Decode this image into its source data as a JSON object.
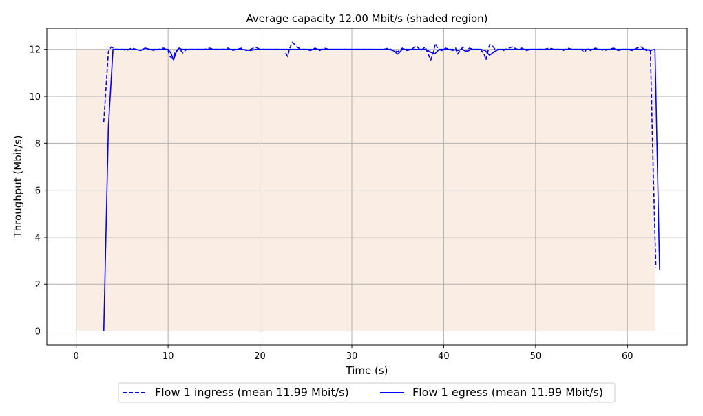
{
  "chart_data": {
    "type": "line",
    "title": "Average capacity 12.00 Mbit/s (shaded region)",
    "xlabel": "Time (s)",
    "ylabel": "Throughput (Mbit/s)",
    "xlim": [
      -3.2,
      66.5
    ],
    "ylim": [
      -0.6,
      12.9
    ],
    "xticks": [
      0,
      10,
      20,
      30,
      40,
      50,
      60
    ],
    "yticks": [
      0,
      2,
      4,
      6,
      8,
      10,
      12
    ],
    "grid": true,
    "legend_position": "bottom-center",
    "shaded_capacity": {
      "x": [
        0,
        63
      ],
      "y": 12.0,
      "color": "#faeee4"
    },
    "series": [
      {
        "name": "Flow 1 ingress (mean 11.99 Mbit/s)",
        "style": "dashed",
        "color": "#0000ff",
        "points": [
          [
            3.0,
            8.9
          ],
          [
            3.5,
            11.9
          ],
          [
            3.8,
            12.1
          ],
          [
            4.3,
            12.0
          ],
          [
            5.0,
            12.0
          ],
          [
            5.5,
            11.95
          ],
          [
            6.0,
            12.05
          ],
          [
            6.5,
            12.0
          ],
          [
            7.0,
            11.95
          ],
          [
            7.5,
            12.05
          ],
          [
            8.0,
            12.0
          ],
          [
            8.5,
            11.95
          ],
          [
            9.0,
            12.0
          ],
          [
            9.5,
            12.05
          ],
          [
            10.0,
            11.95
          ],
          [
            10.2,
            11.7
          ],
          [
            10.5,
            11.6
          ],
          [
            10.8,
            11.9
          ],
          [
            11.2,
            12.05
          ],
          [
            11.6,
            11.85
          ],
          [
            12.0,
            12.0
          ],
          [
            13.0,
            12.0
          ],
          [
            14.0,
            12.0
          ],
          [
            14.5,
            12.05
          ],
          [
            15.0,
            12.0
          ],
          [
            16.0,
            12.0
          ],
          [
            16.5,
            12.05
          ],
          [
            17.0,
            11.95
          ],
          [
            17.5,
            12.0
          ],
          [
            18.0,
            12.05
          ],
          [
            18.5,
            11.95
          ],
          [
            19.0,
            12.0
          ],
          [
            19.5,
            12.1
          ],
          [
            20.0,
            12.0
          ],
          [
            21.0,
            12.0
          ],
          [
            22.0,
            12.0
          ],
          [
            null,
            null
          ],
          [
            22.8,
            11.85
          ],
          [
            23.0,
            11.7
          ],
          [
            23.2,
            12.0
          ],
          [
            23.5,
            12.3
          ],
          [
            23.8,
            12.2
          ],
          [
            24.0,
            12.1
          ],
          [
            24.5,
            12.0
          ],
          [
            25.0,
            12.0
          ],
          [
            25.5,
            11.95
          ],
          [
            26.0,
            12.05
          ],
          [
            26.5,
            11.95
          ],
          [
            27.0,
            12.05
          ],
          [
            27.5,
            12.0
          ],
          [
            28.0,
            12.0
          ],
          [
            29.0,
            12.0
          ],
          [
            30.0,
            12.0
          ],
          [
            31.0,
            12.0
          ],
          [
            32.0,
            12.0
          ],
          [
            null,
            null
          ],
          [
            33.5,
            12.0
          ],
          [
            34.0,
            12.05
          ],
          [
            34.5,
            11.95
          ],
          [
            35.0,
            11.9
          ],
          [
            35.5,
            12.05
          ],
          [
            36.0,
            11.95
          ],
          [
            36.5,
            12.0
          ],
          [
            37.0,
            12.15
          ],
          [
            37.5,
            11.95
          ],
          [
            38.0,
            12.1
          ],
          [
            38.3,
            11.8
          ],
          [
            38.6,
            11.55
          ],
          [
            38.9,
            11.9
          ],
          [
            39.1,
            12.25
          ],
          [
            39.4,
            12.0
          ],
          [
            39.8,
            11.95
          ],
          [
            40.2,
            12.05
          ],
          [
            40.6,
            12.0
          ],
          [
            41.0,
            11.95
          ],
          [
            41.3,
            12.05
          ],
          [
            41.5,
            11.8
          ],
          [
            41.8,
            11.95
          ],
          [
            42.1,
            12.1
          ],
          [
            42.4,
            11.9
          ],
          [
            42.8,
            12.05
          ],
          [
            43.2,
            12.0
          ],
          [
            43.6,
            12.0
          ],
          [
            44.0,
            12.0
          ],
          [
            44.4,
            11.8
          ],
          [
            44.6,
            11.55
          ],
          [
            44.8,
            11.9
          ],
          [
            45.0,
            12.2
          ],
          [
            45.3,
            12.15
          ],
          [
            45.6,
            12.0
          ],
          [
            46.0,
            12.0
          ],
          [
            46.5,
            11.95
          ],
          [
            47.0,
            12.05
          ],
          [
            47.5,
            12.1
          ],
          [
            48.0,
            12.0
          ],
          [
            48.5,
            12.05
          ],
          [
            49.0,
            11.95
          ],
          [
            49.5,
            12.0
          ],
          [
            50.0,
            12.0
          ],
          [
            50.5,
            12.0
          ],
          [
            51.0,
            12.0
          ],
          [
            51.5,
            12.05
          ],
          [
            52.0,
            12.0
          ],
          [
            52.5,
            12.0
          ],
          [
            53.0,
            11.95
          ],
          [
            53.5,
            12.05
          ],
          [
            54.0,
            12.0
          ],
          [
            54.5,
            12.0
          ],
          [
            55.0,
            12.0
          ],
          [
            55.3,
            11.85
          ],
          [
            55.6,
            12.05
          ],
          [
            56.0,
            11.95
          ],
          [
            56.5,
            12.05
          ],
          [
            57.0,
            12.0
          ],
          [
            57.5,
            11.95
          ],
          [
            58.0,
            12.0
          ],
          [
            58.5,
            12.05
          ],
          [
            59.0,
            11.95
          ],
          [
            59.5,
            12.0
          ],
          [
            60.0,
            12.0
          ],
          [
            60.5,
            11.95
          ],
          [
            61.0,
            12.05
          ],
          [
            61.5,
            12.1
          ],
          [
            62.0,
            11.95
          ],
          [
            62.5,
            12.0
          ],
          [
            62.8,
            7.0
          ],
          [
            63.1,
            2.7
          ]
        ]
      },
      {
        "name": "Flow 1 egress (mean 11.99 Mbit/s)",
        "style": "solid",
        "color": "#0000ff",
        "points": [
          [
            3.0,
            0.0
          ],
          [
            3.5,
            8.7
          ],
          [
            4.0,
            12.0
          ],
          [
            4.5,
            12.0
          ],
          [
            5.0,
            12.0
          ],
          [
            5.5,
            12.0
          ],
          [
            6.0,
            12.0
          ],
          [
            6.5,
            12.0
          ],
          [
            7.0,
            11.95
          ],
          [
            7.5,
            12.05
          ],
          [
            8.0,
            12.0
          ],
          [
            8.5,
            12.0
          ],
          [
            9.0,
            12.0
          ],
          [
            9.5,
            12.0
          ],
          [
            10.0,
            12.0
          ],
          [
            10.3,
            11.85
          ],
          [
            10.6,
            11.55
          ],
          [
            10.9,
            11.9
          ],
          [
            11.2,
            12.05
          ],
          [
            11.5,
            12.0
          ],
          [
            12.0,
            12.0
          ],
          [
            13.0,
            12.0
          ],
          [
            14.0,
            12.0
          ],
          [
            15.0,
            12.0
          ],
          [
            16.0,
            12.0
          ],
          [
            17.0,
            12.0
          ],
          [
            18.0,
            12.0
          ],
          [
            19.0,
            11.95
          ],
          [
            19.5,
            12.0
          ],
          [
            20.0,
            12.0
          ],
          [
            21.0,
            12.0
          ],
          [
            22.0,
            12.0
          ],
          [
            23.0,
            12.0
          ],
          [
            24.0,
            12.0
          ],
          [
            25.0,
            12.0
          ],
          [
            26.0,
            12.0
          ],
          [
            27.0,
            12.0
          ],
          [
            28.0,
            12.0
          ],
          [
            29.0,
            12.0
          ],
          [
            30.0,
            12.0
          ],
          [
            31.0,
            12.0
          ],
          [
            32.0,
            12.0
          ],
          [
            33.0,
            12.0
          ],
          [
            34.0,
            12.0
          ],
          [
            34.5,
            11.95
          ],
          [
            35.0,
            11.8
          ],
          [
            35.5,
            12.0
          ],
          [
            36.0,
            12.0
          ],
          [
            37.0,
            12.0
          ],
          [
            38.0,
            12.0
          ],
          [
            38.5,
            11.9
          ],
          [
            39.0,
            11.8
          ],
          [
            39.5,
            12.0
          ],
          [
            40.0,
            12.0
          ],
          [
            41.0,
            12.0
          ],
          [
            41.5,
            11.95
          ],
          [
            42.0,
            12.0
          ],
          [
            42.5,
            11.9
          ],
          [
            43.0,
            12.0
          ],
          [
            44.0,
            12.0
          ],
          [
            44.5,
            11.95
          ],
          [
            45.0,
            11.75
          ],
          [
            45.5,
            11.9
          ],
          [
            46.0,
            12.0
          ],
          [
            47.0,
            12.0
          ],
          [
            48.0,
            12.0
          ],
          [
            49.0,
            12.0
          ],
          [
            50.0,
            12.0
          ],
          [
            51.0,
            12.0
          ],
          [
            52.0,
            12.0
          ],
          [
            53.0,
            12.0
          ],
          [
            54.0,
            12.0
          ],
          [
            55.0,
            12.0
          ],
          [
            56.0,
            12.0
          ],
          [
            57.0,
            12.0
          ],
          [
            58.0,
            12.0
          ],
          [
            59.0,
            12.0
          ],
          [
            60.0,
            12.0
          ],
          [
            61.0,
            12.0
          ],
          [
            62.0,
            12.0
          ],
          [
            62.5,
            11.95
          ],
          [
            63.0,
            12.0
          ],
          [
            63.5,
            2.6
          ]
        ]
      }
    ]
  }
}
